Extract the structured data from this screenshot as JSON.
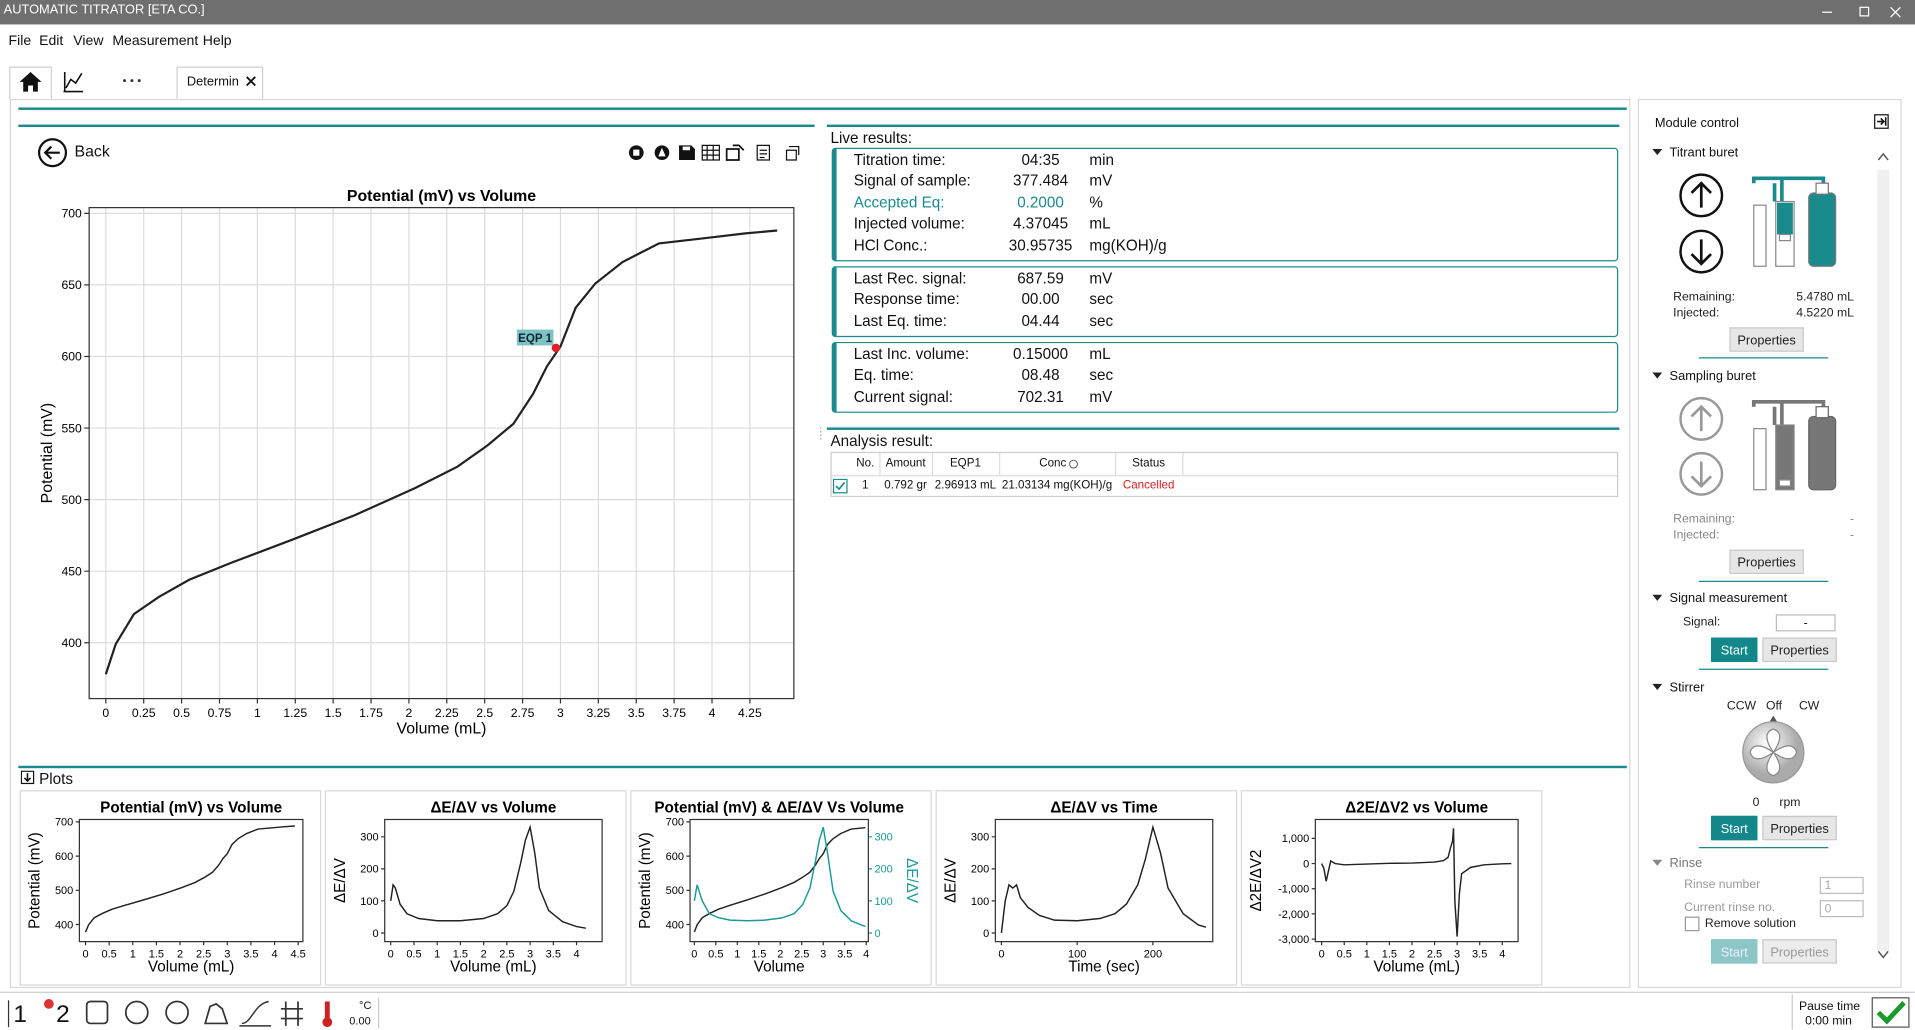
{
  "window": {
    "title": "AUTOMATIC TITRATOR [ETA CO.]"
  },
  "menu": [
    "File",
    "Edit",
    "View",
    "Measurement",
    "Help"
  ],
  "tab": {
    "label": "Determin"
  },
  "back": "Back",
  "live_results": {
    "title": "Live results:",
    "groups": [
      {
        "rows": [
          {
            "label": "Titration time:",
            "value": "04:35",
            "unit": "min"
          },
          {
            "label": "Signal of sample:",
            "value": "377.484",
            "unit": "mV"
          },
          {
            "label": "Accepted Eq:",
            "value": "0.2000",
            "unit": "%",
            "color": "#1a8b8c"
          },
          {
            "label": "Injected volume:",
            "value": "4.37045",
            "unit": "mL"
          },
          {
            "label": "HCl Conc.:",
            "value": "30.95735",
            "unit": "mg(KOH)/g"
          }
        ]
      },
      {
        "rows": [
          {
            "label": "Last Rec. signal:",
            "value": "687.59",
            "unit": "mV"
          },
          {
            "label": "Response time:",
            "value": "00.00",
            "unit": "sec"
          },
          {
            "label": "Last Eq. time:",
            "value": "04.44",
            "unit": "sec"
          }
        ]
      },
      {
        "rows": [
          {
            "label": "Last Inc. volume:",
            "value": "0.15000",
            "unit": "mL"
          },
          {
            "label": "Eq. time:",
            "value": "08.48",
            "unit": "sec"
          },
          {
            "label": "Current signal:",
            "value": "702.31",
            "unit": "mV"
          }
        ]
      }
    ]
  },
  "analysis": {
    "title": "Analysis result:",
    "headers": [
      "No.",
      "Amount",
      "EQP1",
      "Conc",
      "Status"
    ],
    "rows": [
      [
        "1",
        "0.792 gr",
        "2.96913 mL",
        "21.03134 mg(KOH)/g",
        "Cancelled"
      ]
    ]
  },
  "plots": {
    "title": "Plots"
  },
  "chart_data": [
    {
      "type": "line",
      "title": "Potential (mV) vs Volume",
      "x_label": "Volume (mL)",
      "y_label": "Potential (mV)",
      "x": [
        0,
        0.065,
        0.185,
        0.35,
        0.55,
        0.83,
        1.23,
        1.64,
        2.04,
        2.32,
        2.52,
        2.69,
        2.82,
        2.91,
        3.0,
        3.1,
        3.23,
        3.41,
        3.65,
        3.98,
        4.22,
        4.43
      ],
      "values": [
        378,
        399,
        420,
        432,
        444,
        456,
        472,
        489,
        508,
        523,
        538,
        553,
        574,
        593,
        607,
        634,
        651,
        666,
        679,
        683,
        686,
        688
      ],
      "color": "#222222",
      "grid": true,
      "xlim": [
        -0.11,
        4.54
      ],
      "ylim": [
        361,
        704
      ],
      "xticks": [
        0,
        0.25,
        0.5,
        0.75,
        1,
        1.25,
        1.5,
        1.75,
        2,
        2.25,
        2.5,
        2.75,
        3,
        3.25,
        3.5,
        3.75,
        4,
        4.25
      ],
      "yticks": [
        400,
        450,
        500,
        550,
        600,
        650,
        700
      ],
      "annotation": {
        "label": "EQP 1",
        "x": 2.97,
        "y": 606,
        "color": "#e0202a"
      }
    },
    {
      "type": "line",
      "title": "Potential (mV) vs Volume",
      "x_label": "Volume (mL)",
      "y_label": "Potential (mV)",
      "x": [
        0,
        0.065,
        0.185,
        0.35,
        0.55,
        0.83,
        1.23,
        1.64,
        2.04,
        2.32,
        2.52,
        2.69,
        2.82,
        2.91,
        3.0,
        3.1,
        3.23,
        3.41,
        3.65,
        3.98,
        4.22,
        4.43
      ],
      "values": [
        378,
        399,
        420,
        432,
        444,
        456,
        472,
        489,
        508,
        523,
        538,
        553,
        574,
        593,
        607,
        634,
        651,
        666,
        679,
        683,
        686,
        688
      ],
      "color": "#222222",
      "xlim": [
        -0.13,
        4.6
      ],
      "ylim": [
        350,
        707
      ],
      "xticks": [
        0,
        0.5,
        1,
        1.5,
        2,
        2.5,
        3,
        3.5,
        4,
        4.5
      ],
      "yticks": [
        400,
        500,
        600,
        700
      ]
    },
    {
      "type": "line",
      "title": "ΔE/ΔV vs Volume",
      "x_label": "Volume (mL)",
      "y_label": "ΔE/ΔV",
      "x": [
        0,
        0.05,
        0.1,
        0.2,
        0.35,
        0.6,
        1.0,
        1.5,
        2.0,
        2.3,
        2.5,
        2.65,
        2.8,
        2.9,
        3.0,
        3.1,
        3.2,
        3.4,
        3.7,
        4.0,
        4.2
      ],
      "values": [
        100,
        150,
        140,
        90,
        60,
        45,
        38,
        38,
        45,
        60,
        85,
        130,
        220,
        290,
        330,
        250,
        140,
        70,
        35,
        20,
        15
      ],
      "color": "#222222",
      "xlim": [
        -0.13,
        4.55
      ],
      "ylim": [
        -27,
        354
      ],
      "xticks": [
        0,
        0.5,
        1,
        1.5,
        2,
        2.5,
        3,
        3.5,
        4
      ],
      "yticks": [
        0,
        100,
        200,
        300
      ]
    },
    {
      "type": "line",
      "title": "Potential (mV) & ΔE/ΔV Vs Volume",
      "x_label": "Volume",
      "y_label": "Potential (mV)",
      "y2_label": "ΔE/ΔV",
      "x": [
        0,
        0.065,
        0.185,
        0.35,
        0.55,
        0.83,
        1.23,
        1.64,
        2.04,
        2.32,
        2.52,
        2.69,
        2.82,
        2.91,
        3.0,
        3.1,
        3.23,
        3.41,
        3.65,
        3.98
      ],
      "series": [
        {
          "color": "#222222",
          "values": [
            378,
            399,
            420,
            432,
            444,
            456,
            472,
            489,
            508,
            523,
            538,
            553,
            574,
            593,
            607,
            634,
            651,
            666,
            679,
            683
          ]
        },
        {
          "color": "#1a9a98",
          "axis": "y2",
          "values": [
            100,
            150,
            100,
            60,
            48,
            40,
            38,
            40,
            47,
            60,
            88,
            140,
            225,
            290,
            330,
            250,
            130,
            70,
            38,
            20
          ]
        }
      ],
      "xlim": [
        -0.1,
        4.05
      ],
      "ylim": [
        350,
        707
      ],
      "y2lim": [
        -27,
        354
      ],
      "xticks": [
        0,
        0.5,
        1,
        1.5,
        2,
        2.5,
        3,
        3.5,
        4
      ],
      "yticks": [
        400,
        500,
        600,
        700
      ],
      "y2ticks": [
        0,
        100,
        200,
        300
      ]
    },
    {
      "type": "line",
      "title": "ΔE/ΔV vs Time",
      "x_label": "Time (sec)",
      "y_label": "ΔE/ΔV",
      "x": [
        0,
        5,
        10,
        15,
        20,
        25,
        35,
        50,
        70,
        100,
        130,
        150,
        165,
        180,
        190,
        200,
        210,
        220,
        240,
        260,
        270
      ],
      "values": [
        0,
        100,
        150,
        140,
        150,
        110,
        80,
        55,
        40,
        38,
        45,
        60,
        90,
        150,
        230,
        330,
        250,
        140,
        60,
        25,
        18
      ],
      "color": "#222222",
      "xlim": [
        -8,
        279
      ],
      "ylim": [
        -27,
        354
      ],
      "xticks": [
        0,
        100,
        200
      ],
      "yticks": [
        0,
        100,
        200,
        300
      ]
    },
    {
      "type": "line",
      "title": "Δ2E/ΔV2 vs Volume",
      "x_label": "Volume (mL)",
      "y_label": "Δ2E/ΔV2",
      "x": [
        0,
        0.05,
        0.1,
        0.15,
        0.2,
        0.3,
        0.5,
        1,
        1.5,
        2,
        2.5,
        2.7,
        2.8,
        2.85,
        2.9,
        2.92,
        2.95,
        3.0,
        3.05,
        3.1,
        3.3,
        3.6,
        4.0,
        4.2
      ],
      "values": [
        0,
        -200,
        -700,
        -300,
        100,
        0,
        -50,
        -20,
        10,
        20,
        60,
        120,
        250,
        600,
        900,
        1400,
        -1500,
        -2900,
        -1200,
        -400,
        -150,
        -50,
        -10,
        0
      ],
      "color": "#222222",
      "xlim": [
        -0.14,
        4.35
      ],
      "ylim": [
        -3100,
        1750
      ],
      "xticks": [
        0,
        0.5,
        1,
        1.5,
        2,
        2.5,
        3,
        3.5,
        4
      ],
      "yticks": [
        {
          "value": 1000,
          "label": "1,000"
        },
        0,
        {
          "value": -1000,
          "label": "-1,000"
        },
        {
          "value": -2000,
          "label": "-2,000"
        },
        {
          "value": -3000,
          "label": "-3,000"
        }
      ]
    }
  ],
  "module_control": {
    "title": "Module control",
    "titrant": {
      "title": "Titrant buret",
      "remaining_label": "Remaining:",
      "remaining": "5.4780 mL",
      "injected_label": "Injected:",
      "injected": "4.5220 mL",
      "button": "Properties"
    },
    "sampling": {
      "title": "Sampling buret",
      "remaining_label": "Remaining:",
      "remaining": "-",
      "injected_label": "Injected:",
      "injected": "-",
      "button": "Properties"
    },
    "signal": {
      "title": "Signal measurement",
      "label": "Signal:",
      "value": "-",
      "start": "Start",
      "button": "Properties"
    },
    "stirrer": {
      "title": "Stirrer",
      "ccw": "CCW",
      "off": "Off",
      "cw": "CW",
      "speed": "0",
      "unit": "rpm",
      "start": "Start",
      "button": "Properties"
    },
    "rinse": {
      "title": "Rinse",
      "rinse_number_label": "Rinse number",
      "rinse_number": "1",
      "current_label": "Current rinse no.",
      "current": "0",
      "remove": "Remove solution",
      "start": "Start",
      "button": "Properties"
    }
  },
  "status_bar": {
    "module1": "1",
    "module2": "2",
    "temp_unit": "°C",
    "temp": "0.00",
    "pause_label": "Pause time",
    "pause": "0:00 min"
  }
}
